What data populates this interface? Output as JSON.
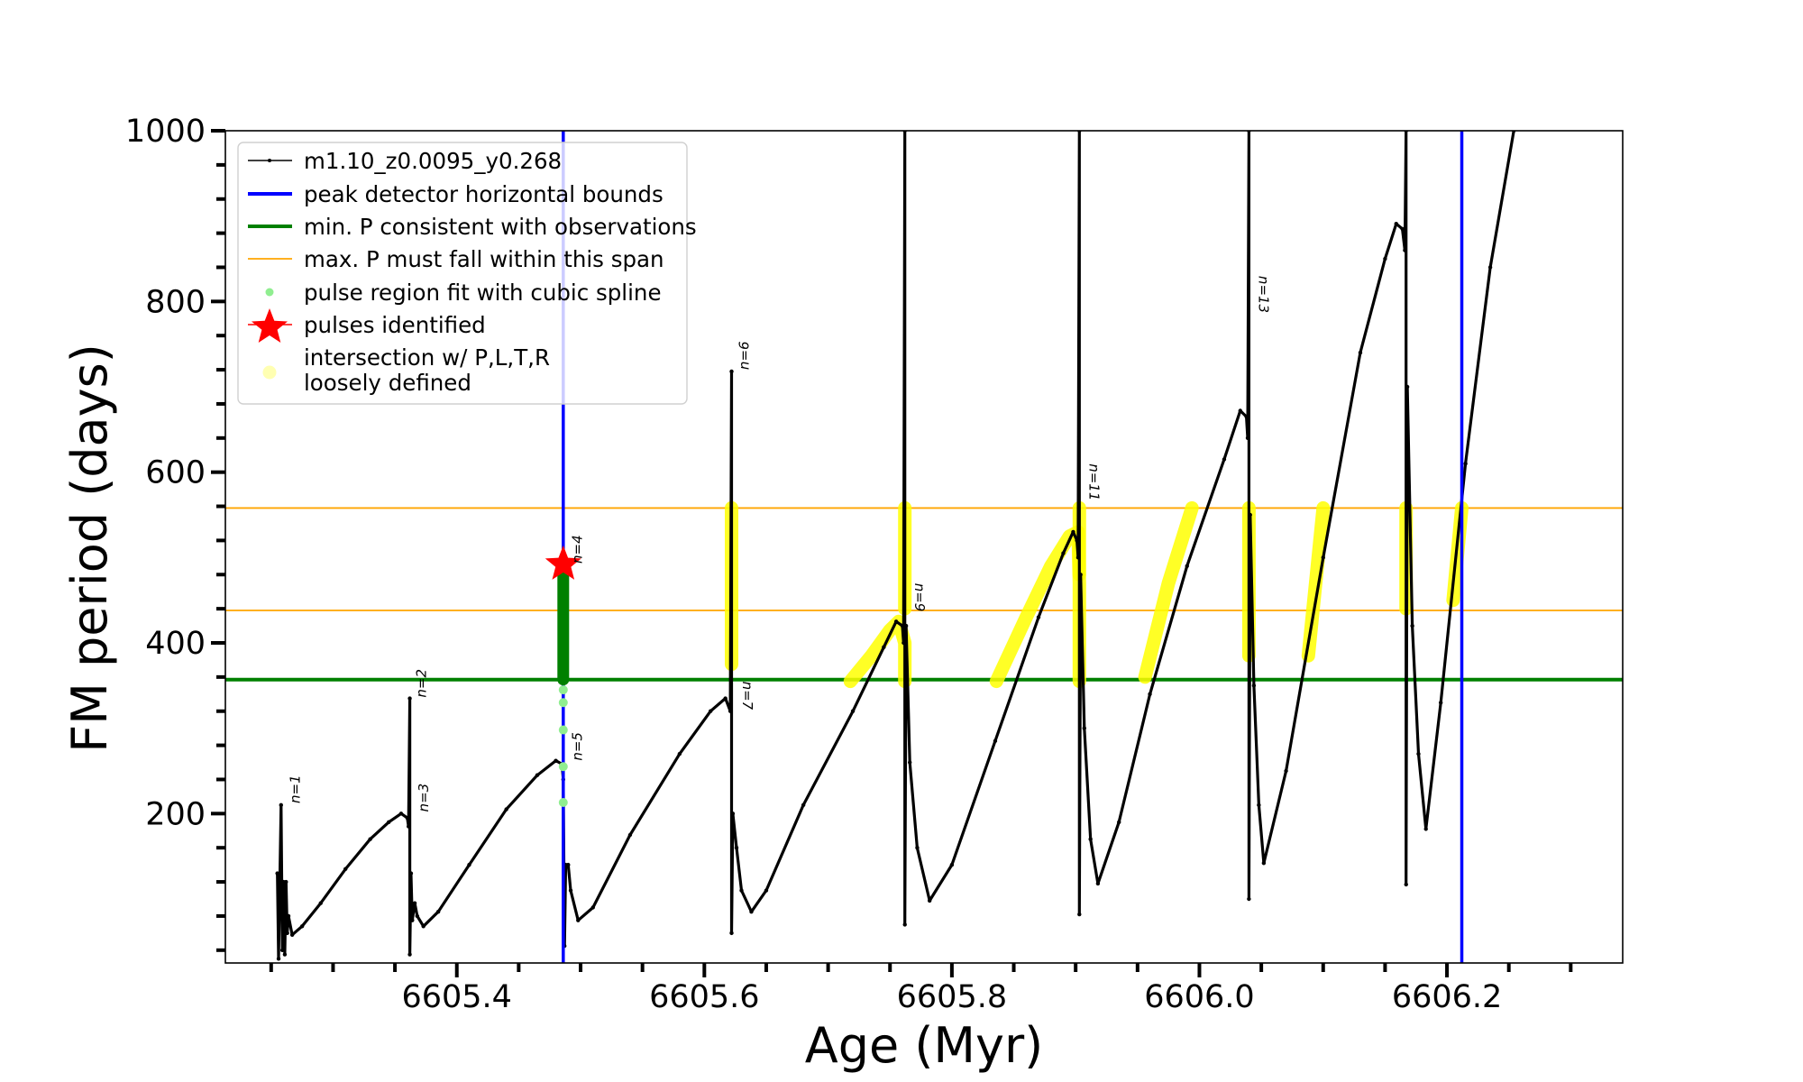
{
  "chart_data": {
    "type": "line",
    "title": "",
    "xlabel": "Age (Myr)",
    "ylabel": "FM period (days)",
    "xlim": [
      6605.213,
      6606.342
    ],
    "ylim": [
      25,
      1000
    ],
    "grid": false,
    "legend_placement": "upper-left",
    "x_major_ticks": [
      6605.4,
      6605.6,
      6605.8,
      6606.0,
      6606.2
    ],
    "x_tick_labels": [
      "6605.4",
      "6605.6",
      "6605.8",
      "6606.0",
      "6606.2"
    ],
    "x_minor_step": 0.05,
    "y_major_ticks": [
      200,
      400,
      600,
      800,
      1000
    ],
    "y_tick_labels": [
      "200",
      "400",
      "600",
      "800",
      "1000"
    ],
    "y_minor_step": 40,
    "colors": {
      "model": "#000000",
      "peak_bounds": "#0000ff",
      "min_p": "#008000",
      "max_p_span": "#ffa500",
      "spline": "#90ee90",
      "spline_dark": "#008000",
      "pulse": "#ff0000",
      "intersection": "#ffff00"
    },
    "series": [
      {
        "name": "m1.10_z0.0095_y0.268",
        "kind": "model-track",
        "x": [
          6605.255,
          6605.256,
          6605.258,
          6605.259,
          6605.26,
          6605.261,
          6605.262,
          6605.263,
          6605.264,
          6605.267,
          6605.275,
          6605.29,
          6605.31,
          6605.33,
          6605.345,
          6605.355,
          6605.36,
          6605.361,
          6605.362,
          6605.362,
          6605.363,
          6605.364,
          6605.366,
          6605.368,
          6605.373,
          6605.385,
          6605.41,
          6605.44,
          6605.465,
          6605.48,
          6605.485,
          6605.486,
          6605.487,
          6605.488,
          6605.49,
          6605.492,
          6605.498,
          6605.51,
          6605.54,
          6605.58,
          6605.605,
          6605.617,
          6605.621,
          6605.622,
          6605.622,
          6605.623,
          6605.626,
          6605.63,
          6605.638,
          6605.65,
          6605.68,
          6605.72,
          6605.745,
          6605.755,
          6605.76,
          6605.761,
          6605.762,
          6605.762,
          6605.763,
          6605.766,
          6605.772,
          6605.782,
          6605.8,
          6605.835,
          6605.87,
          6605.89,
          6605.898,
          6605.901,
          6605.902,
          6605.903,
          6605.903,
          6605.904,
          6605.907,
          6605.912,
          6605.918,
          6605.935,
          6605.96,
          6605.99,
          6606.02,
          6606.033,
          6606.038,
          6606.039,
          6606.04,
          6606.04,
          6606.041,
          6606.044,
          6606.048,
          6606.052,
          6606.07,
          6606.1,
          6606.13,
          6606.15,
          6606.159,
          6606.164,
          6606.166,
          6606.167,
          6606.167,
          6606.168,
          6606.172,
          6606.177,
          6606.183,
          6606.195,
          6606.215,
          6606.235,
          6606.254
        ],
        "y": [
          130,
          30,
          210,
          40,
          120,
          35,
          120,
          60,
          80,
          58,
          68,
          95,
          135,
          170,
          190,
          200,
          195,
          185,
          335,
          35,
          130,
          75,
          95,
          80,
          68,
          85,
          140,
          205,
          245,
          262,
          258,
          240,
          45,
          140,
          140,
          110,
          75,
          90,
          175,
          270,
          320,
          335,
          320,
          718,
          60,
          200,
          160,
          110,
          85,
          110,
          210,
          320,
          395,
          425,
          420,
          400,
          1000,
          70,
          420,
          260,
          160,
          98,
          140,
          285,
          430,
          505,
          530,
          520,
          500,
          1000,
          82,
          480,
          300,
          170,
          118,
          190,
          340,
          490,
          615,
          672,
          665,
          640,
          1000,
          100,
          550,
          350,
          210,
          142,
          250,
          500,
          740,
          850,
          891,
          885,
          860,
          1000,
          117,
          700,
          420,
          270,
          182,
          330,
          610,
          840,
          1000
        ]
      },
      {
        "name": "peak detector horizontal bounds",
        "kind": "vline",
        "x": [
          6605.486,
          6606.212
        ]
      },
      {
        "name": "min. P consistent with observations",
        "kind": "hline",
        "y": [
          357
        ]
      },
      {
        "name": "max. P must fall within this span",
        "kind": "hline",
        "y": [
          438,
          558
        ]
      },
      {
        "name": "pulse region fit with cubic spline",
        "kind": "scatter",
        "x": [
          6605.486,
          6605.486,
          6605.486,
          6605.486,
          6605.486
        ],
        "y": [
          330,
          298,
          255,
          213,
          345
        ]
      },
      {
        "name": "pulse region dense fit",
        "kind": "segment",
        "x": [
          6605.486,
          6605.486
        ],
        "y": [
          357,
          492
        ]
      },
      {
        "name": "pulses identified",
        "kind": "marker",
        "x": [
          6605.486
        ],
        "y": [
          492
        ]
      },
      {
        "name": "intersection w/ P,L,T,R\nloosely defined",
        "kind": "segments",
        "segments": [
          {
            "x": [
              6605.622,
              6605.622
            ],
            "y": [
              375,
              558
            ]
          },
          {
            "x": [
              6605.718,
              6605.735,
              6605.75,
              6605.757,
              6605.762,
              6605.762
            ],
            "y": [
              355,
              385,
              415,
              425,
              400,
              355
            ]
          },
          {
            "x": [
              6605.762,
              6605.762
            ],
            "y": [
              440,
              558
            ]
          },
          {
            "x": [
              6605.836,
              6605.86,
              6605.88,
              6605.895,
              6605.902,
              6605.903,
              6605.903
            ],
            "y": [
              355,
              430,
              490,
              525,
              530,
              470,
              355
            ]
          },
          {
            "x": [
              6605.903,
              6605.903
            ],
            "y": [
              480,
              558
            ]
          },
          {
            "x": [
              6605.956,
              6605.975,
              6605.994
            ],
            "y": [
              360,
              470,
              558
            ]
          },
          {
            "x": [
              6606.04,
              6606.04
            ],
            "y": [
              385,
              558
            ]
          },
          {
            "x": [
              6606.088,
              6606.1
            ],
            "y": [
              385,
              558
            ]
          },
          {
            "x": [
              6606.167,
              6606.167
            ],
            "y": [
              440,
              558
            ]
          },
          {
            "x": [
              6606.205,
              6606.212
            ],
            "y": [
              450,
              558
            ]
          }
        ]
      }
    ],
    "annotations": [
      {
        "text": "n=1",
        "x": 6605.262,
        "y": 212,
        "rotation": "ccw"
      },
      {
        "text": "n=2",
        "x": 6605.364,
        "y": 336,
        "rotation": "ccw"
      },
      {
        "text": "n=3",
        "x": 6605.366,
        "y": 202,
        "rotation": "ccw"
      },
      {
        "text": "n=4",
        "x": 6605.49,
        "y": 493,
        "rotation": "ccw"
      },
      {
        "text": "n=5",
        "x": 6605.49,
        "y": 262,
        "rotation": "ccw"
      },
      {
        "text": "n=6",
        "x": 6605.625,
        "y": 720,
        "rotation": "ccw"
      },
      {
        "text": "n=7",
        "x": 6605.626,
        "y": 355,
        "rotation": "cw"
      },
      {
        "text": "n=9",
        "x": 6605.765,
        "y": 470,
        "rotation": "cw"
      },
      {
        "text": "n=11",
        "x": 6605.906,
        "y": 610,
        "rotation": "cw"
      },
      {
        "text": "n=13",
        "x": 6606.043,
        "y": 830,
        "rotation": "cw"
      }
    ],
    "legend": [
      "m1.10_z0.0095_y0.268",
      "peak detector horizontal bounds",
      "min. P consistent with observations",
      "max. P must fall within this span",
      "pulse region fit with cubic spline",
      "pulses identified",
      "intersection w/ P,L,T,R",
      "loosely defined"
    ]
  }
}
